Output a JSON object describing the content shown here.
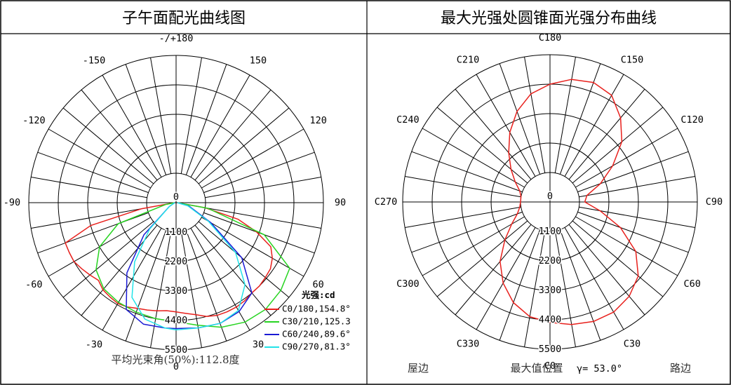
{
  "left_panel": {
    "title": "子午面配光曲线图",
    "angle_labels": [
      {
        "text": "-/+180",
        "angle": 180
      },
      {
        "text": "150",
        "angle": 150
      },
      {
        "text": "120",
        "angle": 120
      },
      {
        "text": "90",
        "angle": 90
      },
      {
        "text": "60",
        "angle": 60
      },
      {
        "text": "30",
        "angle": 30
      },
      {
        "text": "0",
        "angle": 0
      },
      {
        "text": "-30",
        "angle": -30
      },
      {
        "text": "-60",
        "angle": -60
      },
      {
        "text": "-90",
        "angle": -90
      },
      {
        "text": "-120",
        "angle": -120
      },
      {
        "text": "-150",
        "angle": -150
      }
    ],
    "radial_labels": [
      "0",
      "1100",
      "2200",
      "3300",
      "4400",
      "5500"
    ],
    "legend_title": "光强:cd",
    "legend": [
      {
        "label": "C0/180,154.8°",
        "color": "#e8201c"
      },
      {
        "label": "C30/210,125.3",
        "color": "#27d421"
      },
      {
        "label": "C60/240,89.6°",
        "color": "#1a1ad4"
      },
      {
        "label": "C90/270,81.3°",
        "color": "#22e3e8"
      }
    ],
    "footer": "平均光束角(50%):112.8度"
  },
  "right_panel": {
    "title": "最大光强处圆锥面光强分布曲线",
    "angle_labels": [
      {
        "text": "C180",
        "angle": 180
      },
      {
        "text": "C150",
        "angle": 150
      },
      {
        "text": "C120",
        "angle": 120
      },
      {
        "text": "C90",
        "angle": 90
      },
      {
        "text": "C60",
        "angle": 60
      },
      {
        "text": "C30",
        "angle": 30
      },
      {
        "text": "C0",
        "angle": 0
      },
      {
        "text": "C330",
        "angle": -30
      },
      {
        "text": "C300",
        "angle": -60
      },
      {
        "text": "C270",
        "angle": -90
      },
      {
        "text": "C240",
        "angle": -120
      },
      {
        "text": "C210",
        "angle": -150
      }
    ],
    "radial_labels": [
      "0",
      "1100",
      "2200",
      "3300",
      "4400",
      "5500"
    ],
    "footer_left": "屋边",
    "footer_center": "最大值位置",
    "footer_gamma": "γ= 53.0°",
    "footer_right": "路边"
  },
  "chart_data": [
    {
      "type": "polar-line",
      "title": "子午面配光曲线图",
      "r_range": [
        0,
        5500
      ],
      "r_ticks": [
        0,
        1100,
        2200,
        3300,
        4400,
        5500
      ],
      "angle_step_deg": 10,
      "angle_label_step_deg": 30,
      "series": [
        {
          "name": "C0/180,154.8°",
          "color": "#e8201c",
          "points": [
            [
              -90,
              50
            ],
            [
              -80,
              1300
            ],
            [
              -75,
              3300
            ],
            [
              -70,
              4400
            ],
            [
              -65,
              4400
            ],
            [
              -60,
              4400
            ],
            [
              -55,
              4300
            ],
            [
              -50,
              4200
            ],
            [
              -45,
              4100
            ],
            [
              -40,
              4250
            ],
            [
              -35,
              4300
            ],
            [
              -30,
              4350
            ],
            [
              -25,
              4300
            ],
            [
              -20,
              4200
            ],
            [
              -15,
              4150
            ],
            [
              -10,
              4100
            ],
            [
              -5,
              4050
            ],
            [
              0,
              4080
            ],
            [
              5,
              4150
            ],
            [
              10,
              4250
            ],
            [
              15,
              4400
            ],
            [
              20,
              4480
            ],
            [
              25,
              4500
            ],
            [
              30,
              4500
            ],
            [
              35,
              4470
            ],
            [
              40,
              4400
            ],
            [
              45,
              4400
            ],
            [
              50,
              4350
            ],
            [
              55,
              4300
            ],
            [
              60,
              4150
            ],
            [
              65,
              3900
            ],
            [
              70,
              3200
            ],
            [
              75,
              2400
            ],
            [
              80,
              1100
            ],
            [
              90,
              50
            ]
          ]
        },
        {
          "name": "C30/210,125.3",
          "color": "#27d421",
          "points": [
            [
              -90,
              50
            ],
            [
              -80,
              400
            ],
            [
              -70,
              2300
            ],
            [
              -60,
              3300
            ],
            [
              -50,
              3900
            ],
            [
              -40,
              4200
            ],
            [
              -30,
              4300
            ],
            [
              -20,
              4350
            ],
            [
              -10,
              4400
            ],
            [
              0,
              4450
            ],
            [
              10,
              4650
            ],
            [
              20,
              4950
            ],
            [
              30,
              5150
            ],
            [
              40,
              5200
            ],
            [
              50,
              5100
            ],
            [
              60,
              4900
            ],
            [
              70,
              3500
            ],
            [
              80,
              1200
            ],
            [
              90,
              50
            ]
          ]
        },
        {
          "name": "C60/240,89.6°",
          "color": "#1a1ad4",
          "points": [
            [
              -90,
              50
            ],
            [
              -60,
              300
            ],
            [
              -45,
              1700
            ],
            [
              -35,
              3200
            ],
            [
              -25,
              4400
            ],
            [
              -15,
              4700
            ],
            [
              -5,
              4700
            ],
            [
              0,
              4700
            ],
            [
              10,
              4750
            ],
            [
              20,
              4800
            ],
            [
              30,
              4700
            ],
            [
              40,
              4400
            ],
            [
              50,
              3200
            ],
            [
              60,
              1500
            ],
            [
              75,
              500
            ],
            [
              90,
              50
            ]
          ]
        },
        {
          "name": "C90/270,81.3°",
          "color": "#22e3e8",
          "points": [
            [
              -90,
              50
            ],
            [
              -60,
              300
            ],
            [
              -45,
              1400
            ],
            [
              -35,
              2700
            ],
            [
              -25,
              3900
            ],
            [
              -15,
              4500
            ],
            [
              -5,
              4700
            ],
            [
              0,
              4750
            ],
            [
              10,
              4750
            ],
            [
              20,
              4800
            ],
            [
              30,
              4650
            ],
            [
              40,
              4000
            ],
            [
              50,
              2900
            ],
            [
              60,
              1400
            ],
            [
              75,
              450
            ],
            [
              90,
              50
            ]
          ]
        }
      ]
    },
    {
      "type": "polar-line",
      "title": "最大光强处圆锥面光强分布曲线",
      "r_range": [
        0,
        5500
      ],
      "r_ticks": [
        0,
        1100,
        2200,
        3300,
        4400,
        5500
      ],
      "angle_step_deg": 10,
      "angle_label_step_deg": 30,
      "max_position_gamma_deg": 53.0,
      "series": [
        {
          "name": "",
          "color": "#e8201c",
          "points": [
            [
              0,
              4500
            ],
            [
              10,
              4650
            ],
            [
              20,
              4750
            ],
            [
              30,
              4750
            ],
            [
              40,
              4600
            ],
            [
              50,
              4300
            ],
            [
              60,
              3700
            ],
            [
              70,
              2800
            ],
            [
              80,
              1900
            ],
            [
              90,
              1300
            ],
            [
              100,
              1400
            ],
            [
              110,
              2000
            ],
            [
              120,
              2700
            ],
            [
              130,
              3500
            ],
            [
              140,
              4100
            ],
            [
              150,
              4600
            ],
            [
              160,
              4750
            ],
            [
              170,
              4650
            ],
            [
              180,
              4400
            ],
            [
              190,
              4100
            ],
            [
              200,
              3600
            ],
            [
              210,
              3000
            ],
            [
              220,
              2400
            ],
            [
              230,
              1900
            ],
            [
              240,
              1500
            ],
            [
              250,
              1200
            ],
            [
              260,
              1100
            ],
            [
              270,
              1100
            ],
            [
              280,
              1150
            ],
            [
              290,
              1300
            ],
            [
              300,
              1650
            ],
            [
              310,
              2200
            ],
            [
              320,
              2900
            ],
            [
              330,
              3500
            ],
            [
              340,
              4000
            ],
            [
              350,
              4350
            ],
            [
              360,
              4500
            ]
          ]
        }
      ]
    }
  ]
}
